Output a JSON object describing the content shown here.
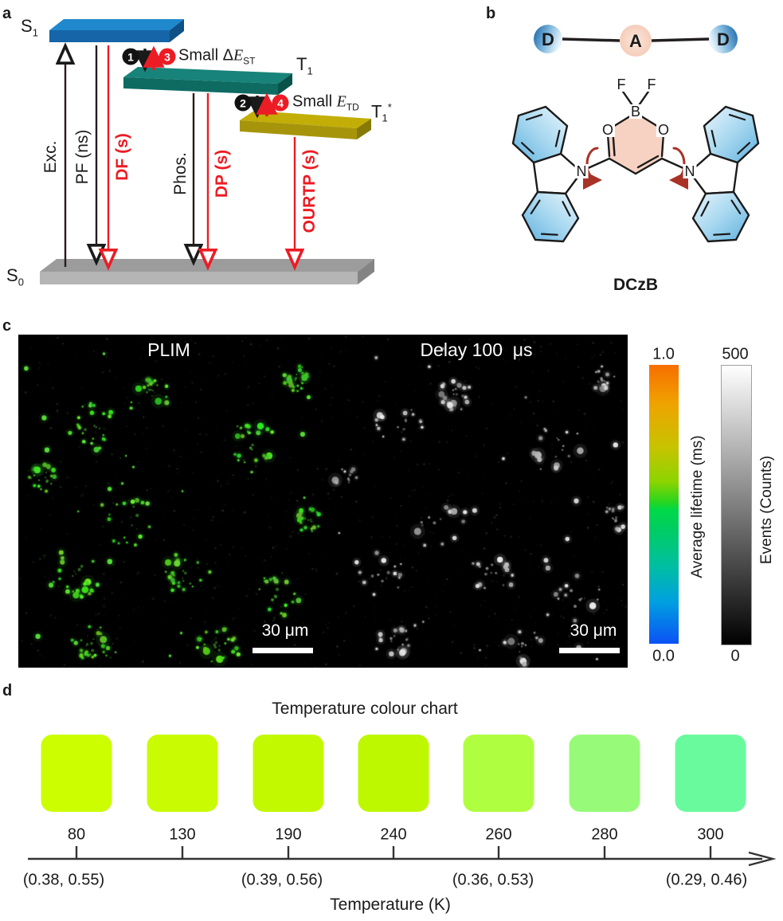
{
  "a": {
    "panel_label": "a",
    "levels": {
      "s1": {
        "main": "S",
        "sub": "1"
      },
      "t1": {
        "main": "T",
        "sub": "1"
      },
      "t1s": {
        "main": "T",
        "sub": "1",
        "sup": "*"
      },
      "s0": {
        "main": "S",
        "sub": "0"
      }
    },
    "transitions": {
      "exc": "Exc.",
      "pf": "PF (ns)",
      "df": "DF (s)",
      "phos": "Phos.",
      "dp": "DP (s)",
      "ourtp": "OURTP (s)"
    },
    "badges": {
      "b1": "1",
      "b2": "2",
      "b3": "3",
      "b4": "4"
    },
    "gaps": {
      "est": {
        "prefix": "Small Δ",
        "symbol": "E",
        "sub": "ST"
      },
      "etd": {
        "prefix": "Small ",
        "symbol": "E",
        "sub": "TD"
      }
    },
    "colors": {
      "radiative_red": "#EC1C24",
      "s1_top": "#2088CC",
      "s1_front": "#1565A8",
      "s1_side": "#0E5186",
      "t1_top": "#17837A",
      "t1_front": "#0D6B62",
      "t1_side": "#085249",
      "t1s_top": "#C2AE06",
      "t1s_front": "#A6950B",
      "t1s_side": "#877907",
      "s0_top": "#9C9C9C",
      "s0_front": "#B5B5B5",
      "s0_side": "#848484"
    }
  },
  "b": {
    "panel_label": "b",
    "dad": {
      "left": "D",
      "center": "A",
      "right": "D"
    },
    "atoms": {
      "f1": "F",
      "f2": "F",
      "boron": "B",
      "o1": "O",
      "o2": "O",
      "n1": "N",
      "n2": "N"
    },
    "molecule_name": "DCzB"
  },
  "c": {
    "panel_label": "c",
    "plim_title": "PLIM",
    "delay_title": "Delay 100  μs",
    "scalebar_left": "30 μm",
    "scalebar_right": "30 μm",
    "lifetime_bar": {
      "max": "1.0",
      "min": "0.0",
      "label": "Average lifetime (ms)",
      "stops": [
        "#F86E00 0%",
        "#EFA300 14%",
        "#C6C400 30%",
        "#8BD400 42%",
        "#2BD51E 49%",
        "#00D948 52%",
        "#00CE5E 58%",
        "#00BFA0 72%",
        "#00A0E0 85%",
        "#0B52F5 100%"
      ]
    },
    "events_bar": {
      "max": "500",
      "min": "0",
      "label": "Events (Counts)",
      "stops": [
        "#FFFFFF 0%",
        "#000000 100%"
      ]
    }
  },
  "d": {
    "panel_label": "d",
    "title": "Temperature colour chart",
    "axis_label": "Temperature (K)",
    "swatches": [
      {
        "temp": "80",
        "color": "#CCFE00"
      },
      {
        "temp": "130",
        "color": "#C9FB02"
      },
      {
        "temp": "190",
        "color": "#C3F900"
      },
      {
        "temp": "240",
        "color": "#BDF800"
      },
      {
        "temp": "260",
        "color": "#B0FE40"
      },
      {
        "temp": "280",
        "color": "#97FB79"
      },
      {
        "temp": "300",
        "color": "#69FA9D"
      }
    ],
    "cie_coords": [
      {
        "text": "(0.38, 0.55)"
      },
      {
        "text": "(0.39, 0.56)"
      },
      {
        "text": "(0.36, 0.53)"
      },
      {
        "text": "(0.29, 0.46)"
      }
    ]
  }
}
